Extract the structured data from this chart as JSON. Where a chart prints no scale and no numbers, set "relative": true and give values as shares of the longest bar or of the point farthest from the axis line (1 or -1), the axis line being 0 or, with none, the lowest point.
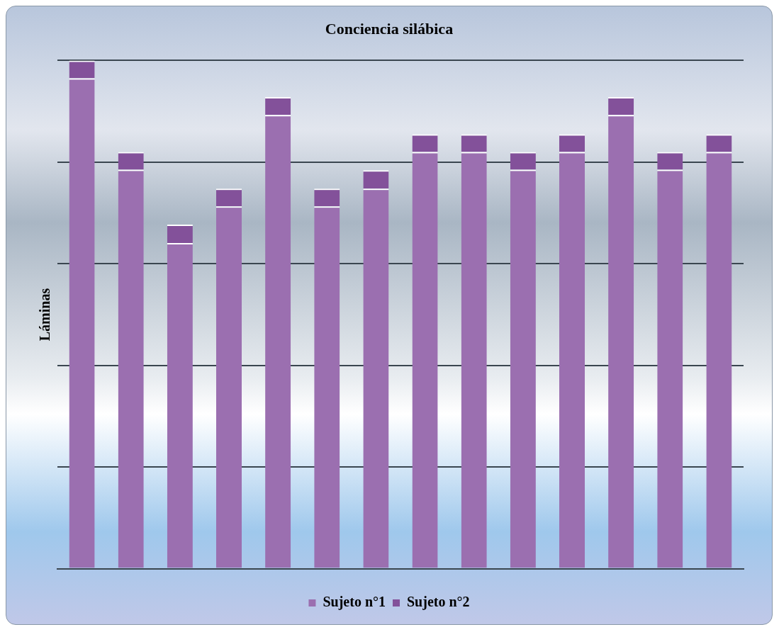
{
  "chart_data": {
    "type": "bar",
    "title": "Conciencia silábica",
    "ylabel": "Láminas",
    "relative": true,
    "stacked": true,
    "grid": "y",
    "legend": "bottom",
    "categories": [
      null,
      null,
      null,
      null,
      null,
      null,
      null,
      null,
      null,
      null,
      null,
      null,
      null,
      null
    ],
    "series": [
      {
        "name": "Sujeto n°1",
        "color": "#9b6fb0",
        "values": [
          0.965,
          0.785,
          0.641,
          0.713,
          0.893,
          0.713,
          0.748,
          0.82,
          0.82,
          0.785,
          0.82,
          0.893,
          0.785,
          0.82
        ]
      },
      {
        "name": "Sujeto n°2",
        "color": "#83519a",
        "values": [
          0.035,
          0.035,
          0.036,
          0.035,
          0.035,
          0.035,
          0.036,
          0.035,
          0.035,
          0.035,
          0.035,
          0.035,
          0.035,
          0.035
        ]
      }
    ]
  }
}
